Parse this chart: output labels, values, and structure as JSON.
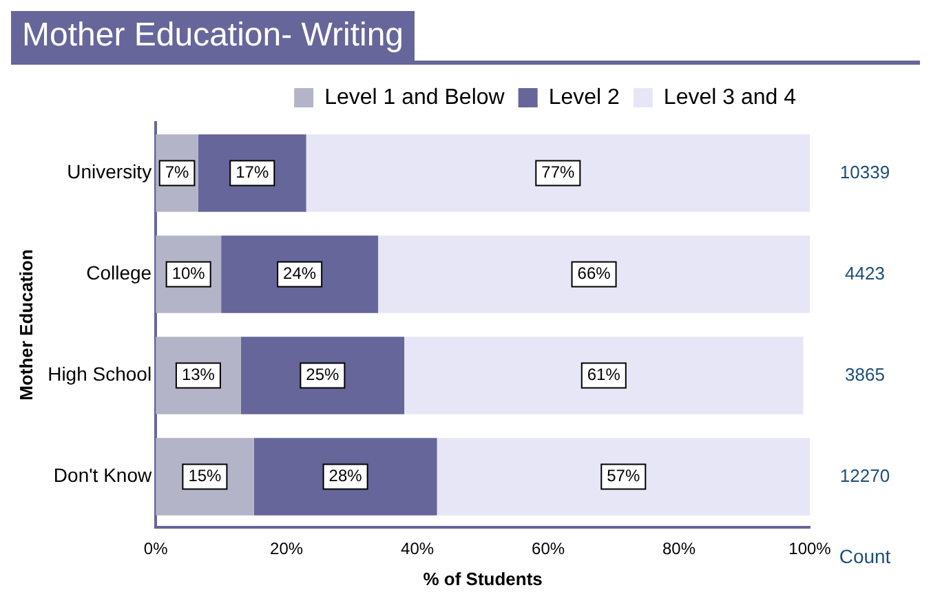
{
  "chart_data": {
    "type": "bar",
    "orientation": "horizontal",
    "stacked": true,
    "title": "Mother Education- Writing",
    "xlabel": "% of Students",
    "ylabel": "Mother Education",
    "categories": [
      "University",
      "College",
      "High School",
      "Don't Know"
    ],
    "series": [
      {
        "name": "Level 1 and Below",
        "color": "#b4b4c8",
        "values": [
          6.5,
          10,
          13,
          15
        ],
        "value_labels": [
          "7%",
          "10%",
          "13%",
          "15%"
        ]
      },
      {
        "name": "Level 2",
        "color": "#66669a",
        "values": [
          16.5,
          24,
          25,
          28
        ],
        "value_labels": [
          "17%",
          "24%",
          "25%",
          "28%"
        ]
      },
      {
        "name": "Level 3 and 4",
        "color": "#e6e6f6",
        "values": [
          77,
          66,
          61,
          57
        ],
        "value_labels": [
          "77%",
          "66%",
          "61%",
          "57%"
        ]
      }
    ],
    "xlim": [
      0,
      100
    ],
    "xticks": [
      {
        "value": 0,
        "label": "0%"
      },
      {
        "value": 20,
        "label": "20%"
      },
      {
        "value": 40,
        "label": "40%"
      },
      {
        "value": 60,
        "label": "60%"
      },
      {
        "value": 80,
        "label": "80%"
      },
      {
        "value": 100,
        "label": "100%"
      }
    ],
    "grid": false,
    "legend": "top right",
    "annotations": [
      "Count",
      "10339",
      "4423",
      "3865",
      "12270"
    ]
  }
}
